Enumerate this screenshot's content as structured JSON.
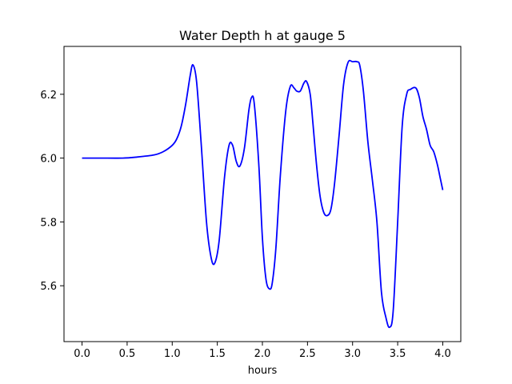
{
  "chart_data": {
    "type": "line",
    "title": "Water Depth h at gauge 5",
    "xlabel": "hours",
    "ylabel": "",
    "xlim": [
      -0.2,
      4.2
    ],
    "ylim": [
      5.425,
      6.35
    ],
    "grid": false,
    "x_ticks": [
      0.0,
      0.5,
      1.0,
      1.5,
      2.0,
      2.5,
      3.0,
      3.5,
      4.0
    ],
    "x_tick_labels": [
      "0.0",
      "0.5",
      "1.0",
      "1.5",
      "2.0",
      "2.5",
      "3.0",
      "3.5",
      "4.0"
    ],
    "y_ticks": [
      5.6,
      5.8,
      6.0,
      6.2
    ],
    "y_tick_labels": [
      "5.6",
      "5.8",
      "6.0",
      "6.2"
    ],
    "series": [
      {
        "color": "#0000ff",
        "x": [
          0.0,
          0.2,
          0.45,
          0.6,
          0.8,
          0.9,
          1.0,
          1.05,
          1.1,
          1.15,
          1.2,
          1.23,
          1.27,
          1.32,
          1.38,
          1.43,
          1.47,
          1.52,
          1.58,
          1.63,
          1.67,
          1.71,
          1.75,
          1.8,
          1.85,
          1.88,
          1.91,
          1.96,
          2.0,
          2.04,
          2.08,
          2.11,
          2.15,
          2.2,
          2.26,
          2.31,
          2.35,
          2.38,
          2.42,
          2.46,
          2.49,
          2.53,
          2.56,
          2.6,
          2.64,
          2.68,
          2.72,
          2.76,
          2.8,
          2.85,
          2.9,
          2.95,
          3.0,
          3.05,
          3.08,
          3.12,
          3.17,
          3.22,
          3.27,
          3.32,
          3.37,
          3.41,
          3.45,
          3.5,
          3.55,
          3.6,
          3.64,
          3.7,
          3.74,
          3.78,
          3.82,
          3.86,
          3.9,
          3.94,
          3.97,
          4.0
        ],
        "y": [
          6.0,
          6.0,
          6.0,
          6.003,
          6.01,
          6.02,
          6.04,
          6.06,
          6.1,
          6.17,
          6.26,
          6.292,
          6.24,
          6.05,
          5.8,
          5.69,
          5.67,
          5.74,
          5.94,
          6.04,
          6.04,
          5.99,
          5.975,
          6.03,
          6.15,
          6.19,
          6.17,
          5.98,
          5.75,
          5.62,
          5.59,
          5.61,
          5.72,
          5.95,
          6.15,
          6.225,
          6.22,
          6.21,
          6.21,
          6.235,
          6.24,
          6.2,
          6.11,
          5.98,
          5.88,
          5.83,
          5.82,
          5.84,
          5.92,
          6.07,
          6.23,
          6.3,
          6.302,
          6.302,
          6.29,
          6.21,
          6.05,
          5.93,
          5.8,
          5.58,
          5.5,
          5.47,
          5.52,
          5.8,
          6.1,
          6.2,
          6.215,
          6.22,
          6.19,
          6.13,
          6.09,
          6.04,
          6.02,
          5.98,
          5.94,
          5.9
        ]
      }
    ]
  }
}
